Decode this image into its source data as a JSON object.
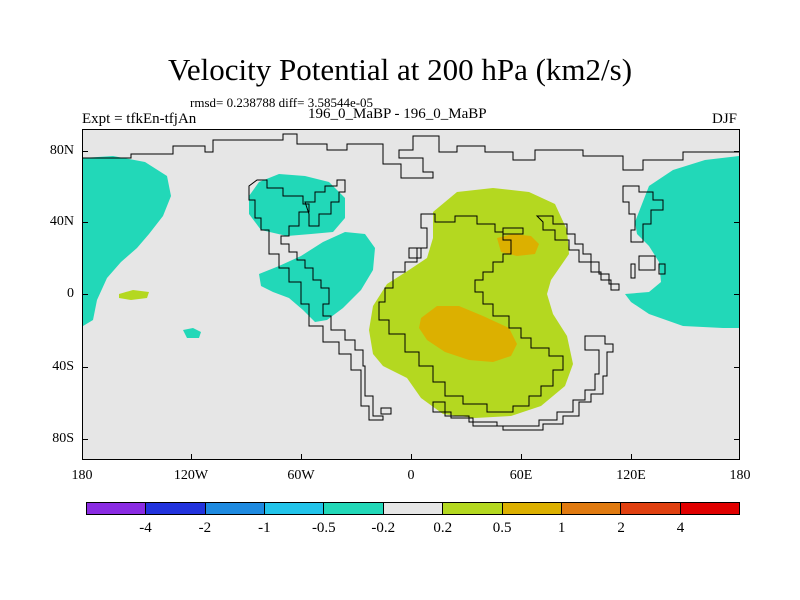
{
  "title": "Velocity Potential at 200 hPa (km2/s)",
  "stats_line": "rmsd= 0.238788 diff= 3.58544e-05",
  "expt_label": "Expt = tfkEn-tfjAn",
  "center_label": "196_0_MaBP - 196_0_MaBP",
  "season_label": "DJF",
  "lat_labels": [
    "80N",
    "40N",
    "0",
    "40S",
    "80S"
  ],
  "lon_labels": [
    "180",
    "120W",
    "60W",
    "0",
    "60E",
    "120E",
    "180"
  ],
  "colorbar": {
    "colors": [
      "#8a2be2",
      "#2233dd",
      "#1e8ae0",
      "#22c4ea",
      "#22d8b8",
      "#e6e6e6",
      "#b4d820",
      "#dcb000",
      "#e07a10",
      "#e04010",
      "#e00000"
    ],
    "labels": [
      "-4",
      "-2",
      "-1",
      "-0.5",
      "-0.2",
      "0.2",
      "0.5",
      "1",
      "2",
      "4"
    ]
  },
  "fill_colors": {
    "background": "#e6e6e6",
    "negative_weak": "#22d8b8",
    "positive_weak": "#b4d820",
    "positive_mid": "#dcb000"
  }
}
